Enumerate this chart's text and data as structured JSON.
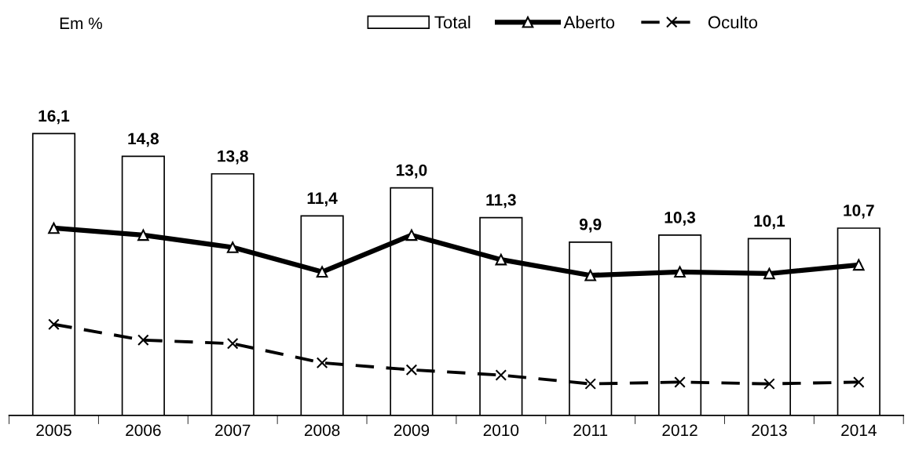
{
  "chart_data": {
    "type": "bar",
    "annotations": [
      "Em %"
    ],
    "categories": [
      "2005",
      "2006",
      "2007",
      "2008",
      "2009",
      "2010",
      "2011",
      "2012",
      "2013",
      "2014"
    ],
    "series": [
      {
        "name": "Total",
        "color": "#ffffff",
        "values": [
          16.1,
          14.8,
          13.8,
          11.4,
          13.0,
          11.3,
          9.9,
          10.3,
          10.1,
          10.7
        ],
        "value_labels": [
          "16,1",
          "14,8",
          "13,8",
          "11,4",
          "13,0",
          "11,3",
          "9,9",
          "10,3",
          "10,1",
          "10,7"
        ]
      },
      {
        "name": "Aberto",
        "type": "line",
        "color": "#000000",
        "marker": "triangle",
        "line_style": "solid",
        "values": [
          10.7,
          10.3,
          9.6,
          8.2,
          10.3,
          8.9,
          8.0,
          8.2,
          8.1,
          8.6
        ]
      },
      {
        "name": "Oculto",
        "type": "line",
        "color": "#000000",
        "marker": "cross",
        "line_style": "dashed",
        "values": [
          5.2,
          4.3,
          4.1,
          3.0,
          2.6,
          2.3,
          1.8,
          1.9,
          1.8,
          1.9
        ]
      }
    ],
    "legend": "top",
    "grid": false
  }
}
